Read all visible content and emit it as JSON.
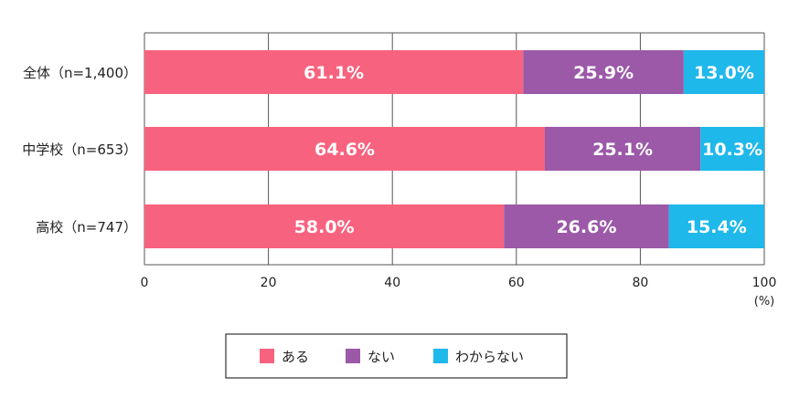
{
  "chart_data": {
    "type": "bar",
    "orientation": "horizontal",
    "stacked": true,
    "categories": [
      "全体（n=1,400）",
      "中学校（n=653）",
      "高校（n=747）"
    ],
    "series": [
      {
        "name": "ある",
        "values": [
          61.1,
          64.6,
          58.0
        ],
        "labels": [
          "61.1%",
          "64.6%",
          "58.0%"
        ],
        "color": "#f7637f"
      },
      {
        "name": "ない",
        "values": [
          25.9,
          25.1,
          26.6
        ],
        "labels": [
          "25.9%",
          "25.1%",
          "26.6%"
        ],
        "color": "#9b59a8"
      },
      {
        "name": "わからない",
        "values": [
          13.0,
          10.3,
          15.4
        ],
        "labels": [
          "13.0%",
          "10.3%",
          "15.4%"
        ],
        "color": "#1fb8ea"
      }
    ],
    "xlim": [
      0,
      100
    ],
    "xticks": [
      0,
      20,
      40,
      60,
      80,
      100
    ],
    "xtick_labels": [
      "0",
      "20",
      "40",
      "60",
      "80",
      "100"
    ],
    "unit": "(%)",
    "grid": true,
    "legend_position": "bottom"
  }
}
